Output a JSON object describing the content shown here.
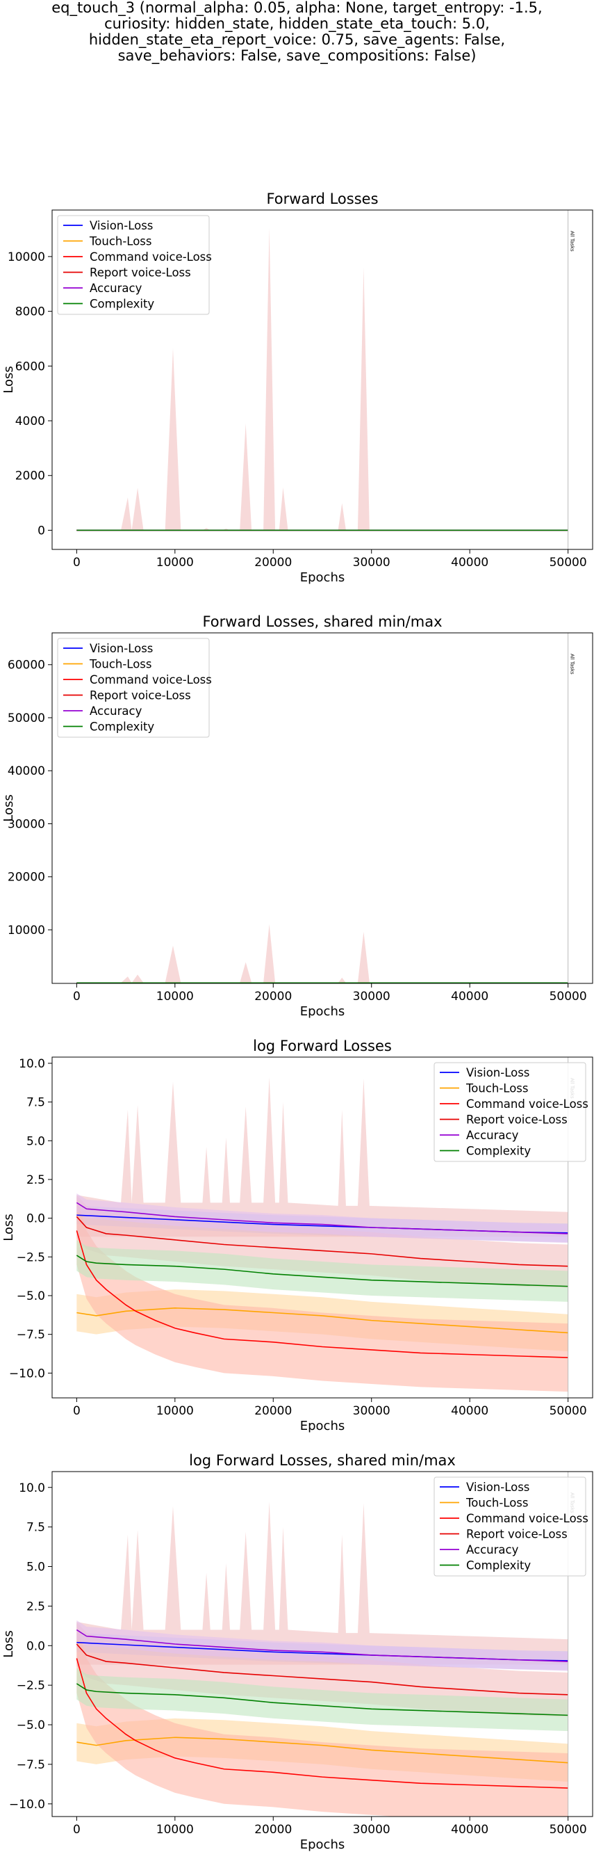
{
  "suptitle": [
    "eq_touch_3 (normal_alpha: 0.05, alpha: None, target_entropy: -1.5,",
    "curiosity: hidden_state, hidden_state_eta_touch: 5.0,",
    "hidden_state_eta_report_voice: 0.75, save_agents: False,",
    "save_behaviors: False, save_compositions: False)"
  ],
  "colors": {
    "vision": "#0000ff",
    "touch": "#ffa500",
    "command": "#ff0000",
    "report": "#e60000",
    "accuracy": "#9400d3",
    "complexity": "#008000"
  },
  "chart_data": [
    {
      "type": "line",
      "title": "Forward Losses",
      "xlabel": "Epochs",
      "ylabel": "Loss",
      "xlim": [
        -2500,
        52500
      ],
      "ylim": [
        -700,
        11700
      ],
      "xticks": [
        0,
        10000,
        20000,
        30000,
        40000,
        50000
      ],
      "yticks": [
        0,
        2000,
        4000,
        6000,
        8000,
        10000
      ],
      "legend": "upper-left",
      "vline": {
        "x": 50000,
        "label": "All Tasks"
      },
      "series": [
        {
          "name": "Vision-Loss",
          "color": "#0000ff",
          "x": [
            0,
            50000
          ],
          "y": [
            0,
            0
          ]
        },
        {
          "name": "Touch-Loss",
          "color": "#ffa500",
          "x": [
            0,
            50000
          ],
          "y": [
            0,
            0
          ]
        },
        {
          "name": "Command voice-Loss",
          "color": "#ff0000",
          "x": [
            0,
            50000
          ],
          "y": [
            0,
            0
          ]
        },
        {
          "name": "Report voice-Loss",
          "color": "#e60000",
          "x": [
            0,
            50000
          ],
          "y": [
            0,
            0
          ]
        },
        {
          "name": "Accuracy",
          "color": "#9400d3",
          "x": [
            0,
            50000
          ],
          "y": [
            0,
            0
          ]
        },
        {
          "name": "Complexity",
          "color": "#008000",
          "x": [
            0,
            50000
          ],
          "y": [
            0,
            0
          ]
        }
      ],
      "band": {
        "x": [
          0,
          4500,
          5200,
          5600,
          6200,
          6800,
          9000,
          9800,
          10600,
          12800,
          13200,
          13600,
          14800,
          15200,
          15600,
          16600,
          17200,
          17800,
          19000,
          19600,
          20200,
          20600,
          21000,
          21500,
          26600,
          27000,
          27400,
          28600,
          29200,
          29800,
          50000
        ],
        "y": [
          0,
          0,
          1200,
          0,
          1550,
          0,
          0,
          6650,
          0,
          0,
          80,
          0,
          0,
          60,
          0,
          0,
          3900,
          0,
          0,
          11050,
          0,
          0,
          1560,
          0,
          0,
          990,
          0,
          0,
          9600,
          0,
          0
        ]
      }
    },
    {
      "type": "line",
      "title": "Forward Losses, shared min/max",
      "xlabel": "Epochs",
      "ylabel": "Loss",
      "xlim": [
        -2500,
        52500
      ],
      "ylim": [
        -100,
        66000
      ],
      "xticks": [
        0,
        10000,
        20000,
        30000,
        40000,
        50000
      ],
      "yticks": [
        10000,
        20000,
        30000,
        40000,
        50000,
        60000
      ],
      "legend": "upper-left",
      "vline": {
        "x": 50000,
        "label": "All Tasks"
      },
      "series": [
        {
          "name": "Vision-Loss",
          "color": "#0000ff",
          "x": [
            0,
            50000
          ],
          "y": [
            0,
            0
          ]
        },
        {
          "name": "Touch-Loss",
          "color": "#ffa500",
          "x": [
            0,
            50000
          ],
          "y": [
            0,
            0
          ]
        },
        {
          "name": "Command voice-Loss",
          "color": "#ff0000",
          "x": [
            0,
            50000
          ],
          "y": [
            0,
            0
          ]
        },
        {
          "name": "Report voice-Loss",
          "color": "#e60000",
          "x": [
            0,
            50000
          ],
          "y": [
            0,
            0
          ]
        },
        {
          "name": "Accuracy",
          "color": "#9400d3",
          "x": [
            0,
            50000
          ],
          "y": [
            0,
            0
          ]
        },
        {
          "name": "Complexity",
          "color": "#008000",
          "x": [
            0,
            50000
          ],
          "y": [
            0,
            0
          ]
        }
      ],
      "band": {
        "x": [
          0,
          4500,
          5200,
          5600,
          6200,
          6800,
          9000,
          9800,
          10600,
          16600,
          17200,
          17800,
          19000,
          19600,
          20200,
          26600,
          27000,
          27400,
          28600,
          29200,
          29800,
          50000
        ],
        "y": [
          0,
          0,
          1200,
          0,
          1550,
          0,
          0,
          7000,
          0,
          0,
          3900,
          0,
          0,
          11050,
          0,
          0,
          990,
          0,
          0,
          9600,
          0,
          0
        ]
      }
    },
    {
      "type": "line",
      "title": "log Forward Losses",
      "xlabel": "Epochs",
      "ylabel": "Loss",
      "xlim": [
        -2500,
        52500
      ],
      "ylim": [
        -11.6,
        10.4
      ],
      "xticks": [
        0,
        10000,
        20000,
        30000,
        40000,
        50000
      ],
      "yticks": [
        -10.0,
        -7.5,
        -5.0,
        -2.5,
        0.0,
        2.5,
        5.0,
        7.5,
        10.0
      ],
      "legend": "upper-right",
      "vline": {
        "x": 50000,
        "label": "All Tasks"
      },
      "series": [
        {
          "name": "Vision-Loss",
          "color": "#0000ff",
          "x": [
            0,
            5000,
            10000,
            15000,
            20000,
            25000,
            30000,
            35000,
            40000,
            45000,
            50000
          ],
          "y": [
            0.2,
            0.05,
            -0.1,
            -0.25,
            -0.4,
            -0.5,
            -0.6,
            -0.7,
            -0.8,
            -0.9,
            -0.95
          ]
        },
        {
          "name": "Touch-Loss",
          "color": "#ffa500",
          "x": [
            0,
            2000,
            5000,
            10000,
            15000,
            20000,
            25000,
            30000,
            35000,
            40000,
            45000,
            50000
          ],
          "y": [
            -6.1,
            -6.3,
            -6.0,
            -5.8,
            -5.9,
            -6.1,
            -6.3,
            -6.6,
            -6.8,
            -7.0,
            -7.2,
            -7.4
          ]
        },
        {
          "name": "Command voice-Loss",
          "color": "#ff0000",
          "x": [
            0,
            1000,
            2000,
            3000,
            4000,
            5000,
            6000,
            8000,
            10000,
            12000,
            15000,
            20000,
            25000,
            30000,
            35000,
            40000,
            45000,
            50000
          ],
          "y": [
            -0.8,
            -3.0,
            -4.0,
            -4.6,
            -5.1,
            -5.6,
            -6.0,
            -6.6,
            -7.1,
            -7.4,
            -7.8,
            -8.0,
            -8.3,
            -8.5,
            -8.7,
            -8.8,
            -8.9,
            -9.0
          ]
        },
        {
          "name": "Report voice-Loss",
          "color": "#e60000",
          "x": [
            0,
            1000,
            3000,
            5000,
            10000,
            15000,
            20000,
            25000,
            30000,
            35000,
            40000,
            45000,
            50000
          ],
          "y": [
            0.1,
            -0.6,
            -1.0,
            -1.1,
            -1.4,
            -1.7,
            -1.9,
            -2.1,
            -2.3,
            -2.6,
            -2.8,
            -3.0,
            -3.1
          ]
        },
        {
          "name": "Accuracy",
          "color": "#9400d3",
          "x": [
            0,
            1000,
            3000,
            5000,
            10000,
            15000,
            20000,
            25000,
            30000,
            35000,
            40000,
            45000,
            50000
          ],
          "y": [
            1.0,
            0.6,
            0.5,
            0.4,
            0.1,
            -0.1,
            -0.3,
            -0.4,
            -0.6,
            -0.7,
            -0.8,
            -0.9,
            -1.0
          ]
        },
        {
          "name": "Complexity",
          "color": "#008000",
          "x": [
            0,
            1000,
            2000,
            5000,
            10000,
            15000,
            20000,
            25000,
            30000,
            35000,
            40000,
            45000,
            50000
          ],
          "y": [
            -2.4,
            -2.8,
            -2.9,
            -3.0,
            -3.1,
            -3.3,
            -3.6,
            -3.8,
            -4.0,
            -4.1,
            -4.2,
            -4.3,
            -4.4
          ]
        }
      ],
      "band": {
        "x": [
          0,
          4500,
          5200,
          5600,
          6200,
          6800,
          9000,
          9800,
          10600,
          12800,
          13200,
          13600,
          14800,
          15200,
          15600,
          16600,
          17200,
          17800,
          19000,
          19600,
          20200,
          20600,
          21000,
          21500,
          26600,
          27000,
          27400,
          28600,
          29200,
          29800,
          50000
        ],
        "y": [
          1.5,
          1.0,
          7.0,
          1.0,
          7.3,
          1.0,
          1.0,
          8.8,
          1.0,
          1.0,
          4.6,
          1.0,
          1.0,
          5.2,
          1.0,
          1.0,
          7.2,
          1.0,
          1.0,
          9.1,
          1.0,
          1.0,
          7.5,
          1.0,
          0.8,
          7.0,
          0.8,
          0.8,
          9.0,
          0.8,
          0.4
        ]
      }
    },
    {
      "type": "line",
      "title": "log Forward Losses, shared min/max",
      "xlabel": "Epochs",
      "ylabel": "Loss",
      "xlim": [
        -2500,
        52500
      ],
      "ylim": [
        -10.8,
        11.0
      ],
      "xticks": [
        0,
        10000,
        20000,
        30000,
        40000,
        50000
      ],
      "yticks": [
        -10.0,
        -7.5,
        -5.0,
        -2.5,
        0.0,
        2.5,
        5.0,
        7.5,
        10.0
      ],
      "legend": "upper-right",
      "vline": {
        "x": 50000,
        "label": "All Tasks"
      },
      "series": [
        {
          "name": "Vision-Loss",
          "color": "#0000ff",
          "x": [
            0,
            5000,
            10000,
            15000,
            20000,
            25000,
            30000,
            35000,
            40000,
            45000,
            50000
          ],
          "y": [
            0.2,
            0.05,
            -0.1,
            -0.25,
            -0.4,
            -0.5,
            -0.6,
            -0.7,
            -0.8,
            -0.9,
            -0.95
          ]
        },
        {
          "name": "Touch-Loss",
          "color": "#ffa500",
          "x": [
            0,
            2000,
            5000,
            10000,
            15000,
            20000,
            25000,
            30000,
            35000,
            40000,
            45000,
            50000
          ],
          "y": [
            -6.1,
            -6.3,
            -6.0,
            -5.8,
            -5.9,
            -6.1,
            -6.3,
            -6.6,
            -6.8,
            -7.0,
            -7.2,
            -7.4
          ]
        },
        {
          "name": "Command voice-Loss",
          "color": "#ff0000",
          "x": [
            0,
            1000,
            2000,
            3000,
            4000,
            5000,
            6000,
            8000,
            10000,
            12000,
            15000,
            20000,
            25000,
            30000,
            35000,
            40000,
            45000,
            50000
          ],
          "y": [
            -0.8,
            -3.0,
            -4.0,
            -4.6,
            -5.1,
            -5.6,
            -6.0,
            -6.6,
            -7.1,
            -7.4,
            -7.8,
            -8.0,
            -8.3,
            -8.5,
            -8.7,
            -8.8,
            -8.9,
            -9.0
          ]
        },
        {
          "name": "Report voice-Loss",
          "color": "#e60000",
          "x": [
            0,
            1000,
            3000,
            5000,
            10000,
            15000,
            20000,
            25000,
            30000,
            35000,
            40000,
            45000,
            50000
          ],
          "y": [
            0.1,
            -0.6,
            -1.0,
            -1.1,
            -1.4,
            -1.7,
            -1.9,
            -2.1,
            -2.3,
            -2.6,
            -2.8,
            -3.0,
            -3.1
          ]
        },
        {
          "name": "Accuracy",
          "color": "#9400d3",
          "x": [
            0,
            1000,
            3000,
            5000,
            10000,
            15000,
            20000,
            25000,
            30000,
            35000,
            40000,
            45000,
            50000
          ],
          "y": [
            1.0,
            0.6,
            0.5,
            0.4,
            0.1,
            -0.1,
            -0.3,
            -0.4,
            -0.6,
            -0.7,
            -0.8,
            -0.9,
            -1.0
          ]
        },
        {
          "name": "Complexity",
          "color": "#008000",
          "x": [
            0,
            1000,
            2000,
            5000,
            10000,
            15000,
            20000,
            25000,
            30000,
            35000,
            40000,
            45000,
            50000
          ],
          "y": [
            -2.4,
            -2.8,
            -2.9,
            -3.0,
            -3.1,
            -3.3,
            -3.6,
            -3.8,
            -4.0,
            -4.1,
            -4.2,
            -4.3,
            -4.4
          ]
        }
      ],
      "band": {
        "x": [
          0,
          4500,
          5200,
          5600,
          6200,
          6800,
          9000,
          9800,
          10600,
          12800,
          13200,
          13600,
          14800,
          15200,
          15600,
          16600,
          17200,
          17800,
          19000,
          19600,
          20200,
          20600,
          21000,
          21500,
          26600,
          27000,
          27400,
          28600,
          29200,
          29800,
          50000
        ],
        "y": [
          1.5,
          1.0,
          7.0,
          1.0,
          7.3,
          1.0,
          1.0,
          8.8,
          1.0,
          1.0,
          4.6,
          1.0,
          1.0,
          5.2,
          1.0,
          1.0,
          7.2,
          1.0,
          1.0,
          9.1,
          1.0,
          1.0,
          7.5,
          1.0,
          0.8,
          7.0,
          0.8,
          0.8,
          9.0,
          0.8,
          0.4
        ]
      }
    }
  ]
}
